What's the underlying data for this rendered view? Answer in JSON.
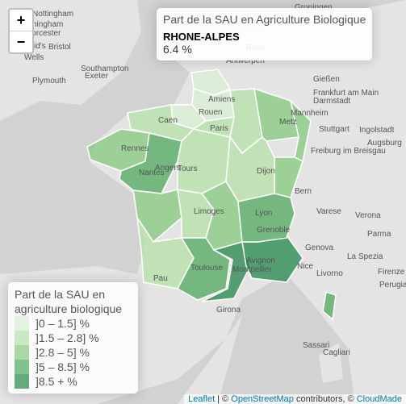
{
  "zoom": {
    "in": "+",
    "out": "−"
  },
  "info": {
    "title": "Part de la SAU en Agriculture Biologique",
    "region": "RHONE-ALPES",
    "value": "6.4 %"
  },
  "legend": {
    "title": "Part de la SAU en agriculture biologique",
    "items": [
      {
        "label": "]0 – 1.5] %",
        "color": "#d9f0d3"
      },
      {
        "label": "]1.5 – 2.8] %",
        "color": "#b5e0a8"
      },
      {
        "label": "]2.8 – 5] %",
        "color": "#86c97e"
      },
      {
        "label": "]5 – 8.5] %",
        "color": "#4fa95f"
      },
      {
        "label": "]8.5 + %",
        "color": "#23874a"
      }
    ]
  },
  "attribution": [
    "Leaflet",
    "OpenStreetMap",
    "contributors,",
    "CloudMade"
  ],
  "map_labels": [
    "Nottingham",
    "Birmingham",
    "Worcester",
    "St David's",
    "Bristol",
    "Wells",
    "Southampton",
    "Exeter",
    "Plymouth",
    "Groningen",
    "Antwerpen",
    "Bonn",
    "Gießen",
    "Frankfurt am Main",
    "Darmstadt",
    "Mannheim",
    "Stuttgart",
    "Ingolstadt",
    "Augsburg",
    "Freiburg im Breisgau",
    "Bern",
    "Varese",
    "Verona",
    "Genova",
    "La Spezia",
    "Parma",
    "Firenze",
    "Livorno",
    "Perugia",
    "Girona",
    "Cagliari",
    "Amiens",
    "Rouen",
    "Caen",
    "Paris",
    "Metz",
    "Rennes",
    "Nantes",
    "Angers",
    "Tours",
    "Dijon",
    "Limoges",
    "Lyon",
    "Grenoble",
    "Toulouse",
    "Montpellier",
    "Avignon",
    "Nice",
    "Pau",
    "Sassari"
  ]
}
